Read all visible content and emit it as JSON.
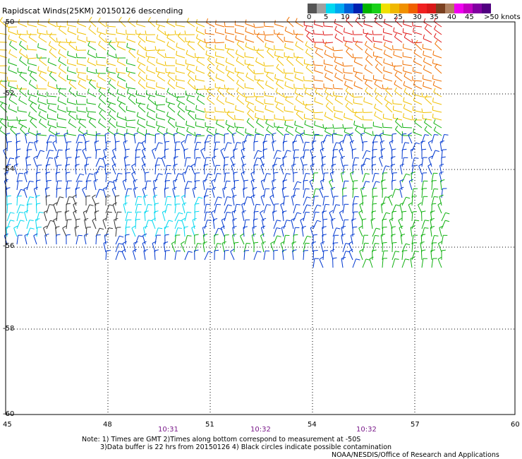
{
  "title": "Rapidscat Winds(25KM) 20150126 descending",
  "legend": {
    "colors": [
      "#555555",
      "#a0a0a0",
      "#00d8f0",
      "#00a8f0",
      "#0060d8",
      "#0020b0",
      "#00b400",
      "#18d018",
      "#f0e000",
      "#f0b800",
      "#f09000",
      "#f06000",
      "#f02020",
      "#d81818",
      "#7a4020",
      "#b08060",
      "#f000f0",
      "#c000c0",
      "#8000a0",
      "#500080"
    ],
    "labels": [
      "0",
      "5",
      "10",
      "15",
      "20",
      "25",
      "30",
      "35",
      "40",
      "45",
      ">50 knots"
    ]
  },
  "lat_labels": [
    "-50",
    "-52",
    "-54",
    "-56",
    "-58",
    "-60"
  ],
  "lon_labels": [
    "45",
    "48",
    "51",
    "54",
    "57",
    "60"
  ],
  "time_labels": [
    "10:31",
    "10:32",
    "10:32"
  ],
  "notes": {
    "line1": "Note: 1) Times are GMT 2)Times along bottom correspond to measurement at -50S",
    "line2": "3)Data buffer is 22 hrs from 20150126 4) Black circles indicate possible contamination",
    "credit": "NOAA/NESDIS/Office of Research and Applications"
  },
  "speed_colors": {
    "calm": "#333333",
    "light": "#00d8f0",
    "moderate": "#0038d0",
    "fresh": "#10b010",
    "strong": "#f0c000",
    "gale": "#f07000",
    "storm": "#e01818"
  }
}
